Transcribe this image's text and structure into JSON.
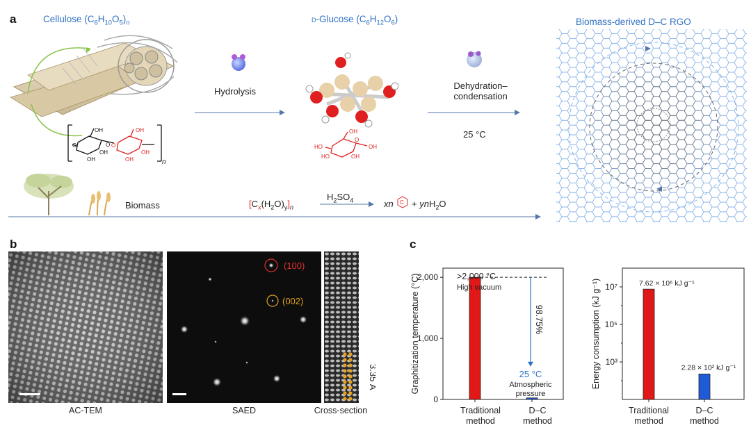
{
  "panels": {
    "a": {
      "letter": "a",
      "cellulose_title": "Cellulose (C6H10O5)n",
      "glucose_title": "D-Glucose (C6H12O6)",
      "rgo_title": "Biomass-derived D–C RGO",
      "hydrolysis": "Hydrolysis",
      "dehydration_line1": "Dehydration–",
      "dehydration_line2": "condensation",
      "temperature": "25 °C",
      "biomass": "Biomass",
      "formula": "[Cx(H2O)y]n",
      "acid": "H2SO4",
      "product": "xn",
      "product_tail": "+ ynH2O",
      "oh": "OH",
      "ho": "HO",
      "o": "O",
      "polymer_n": "n"
    },
    "b": {
      "letter": "b",
      "caption_tem": "AC-TEM",
      "caption_saed": "SAED",
      "caption_cross": "Cross-section",
      "spot_100": "(100)",
      "spot_002": "(002)",
      "spacing": "3.35 Å"
    },
    "c": {
      "letter": "c"
    }
  },
  "colors": {
    "blue": "#2f72c4",
    "red_bar": "#e01818",
    "blue_bar": "#1f5bd8",
    "spot_red": "#e03030",
    "spot_orange": "#e0a020",
    "lattice": "#8ab4e8"
  },
  "chart_data": [
    {
      "type": "bar",
      "categories": [
        "Traditional\nmethod",
        "D–C\nmethod"
      ],
      "values": [
        2000,
        25
      ],
      "ylabel": "Graphitization temperature (°C)",
      "ylim": [
        0,
        2150
      ],
      "yticks": [
        "0",
        "1,000",
        "2,000"
      ],
      "ytick_values": [
        0,
        1000,
        2000
      ],
      "annotations": {
        "top_value": ">2,000 °C",
        "top_condition": "High vacuum",
        "reduction": "98.75%",
        "low_value": "25 °C",
        "low_condition_1": "Atmospheric",
        "low_condition_2": "pressure"
      },
      "category_labels": [
        [
          "Traditional",
          "method"
        ],
        [
          "D–C",
          "method"
        ]
      ],
      "grid": false
    },
    {
      "type": "bar",
      "categories": [
        "Traditional\nmethod",
        "D–C\nmethod"
      ],
      "values": [
        7620000,
        228
      ],
      "ylabel": "Energy consumption (kJ g⁻¹)",
      "log_scale": true,
      "ylim": [
        10,
        100000000
      ],
      "yticks": [
        "10³",
        "10⁵",
        "10⁷"
      ],
      "ytick_values": [
        1000,
        100000,
        10000000
      ],
      "annotations": {
        "traditional_label": "7.62 × 10⁶ kJ g⁻¹",
        "dc_label": "2.28 × 10² kJ g⁻¹"
      },
      "category_labels": [
        [
          "Traditional",
          "method"
        ],
        [
          "D–C",
          "method"
        ]
      ],
      "grid": false
    }
  ]
}
